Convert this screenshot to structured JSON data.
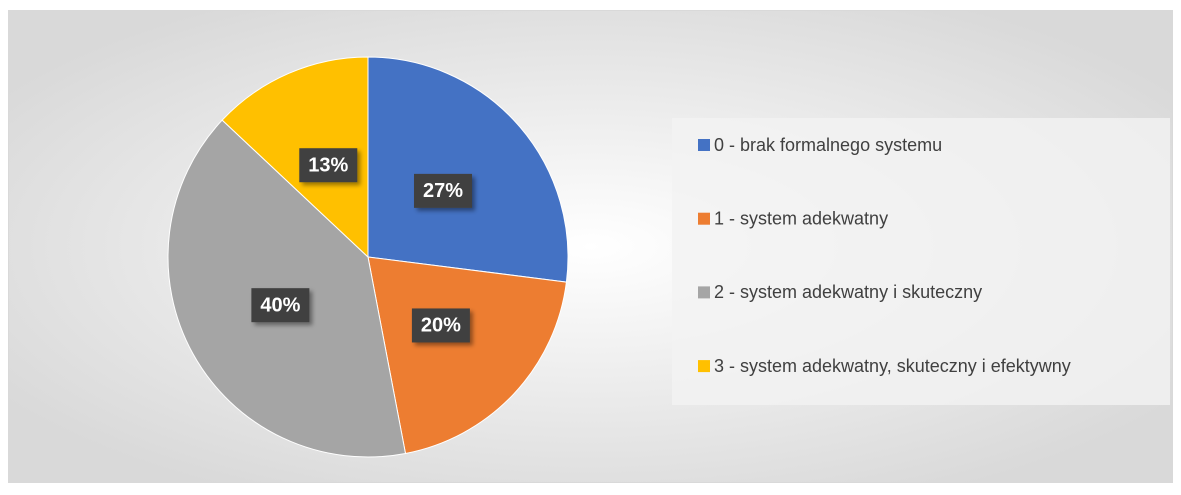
{
  "chart_data": {
    "type": "pie",
    "categories": [
      "0 - brak formalnego systemu",
      "1 - system adekwatny",
      "2 - system adekwatny i skuteczny",
      "3 - system adekwatny, skuteczny i efektywny"
    ],
    "values": [
      27,
      20,
      40,
      13
    ],
    "value_labels": [
      "27%",
      "20%",
      "40%",
      "13%"
    ],
    "colors": [
      "#4472c4",
      "#ed7d31",
      "#a5a5a5",
      "#ffc000"
    ],
    "legend": "right"
  }
}
